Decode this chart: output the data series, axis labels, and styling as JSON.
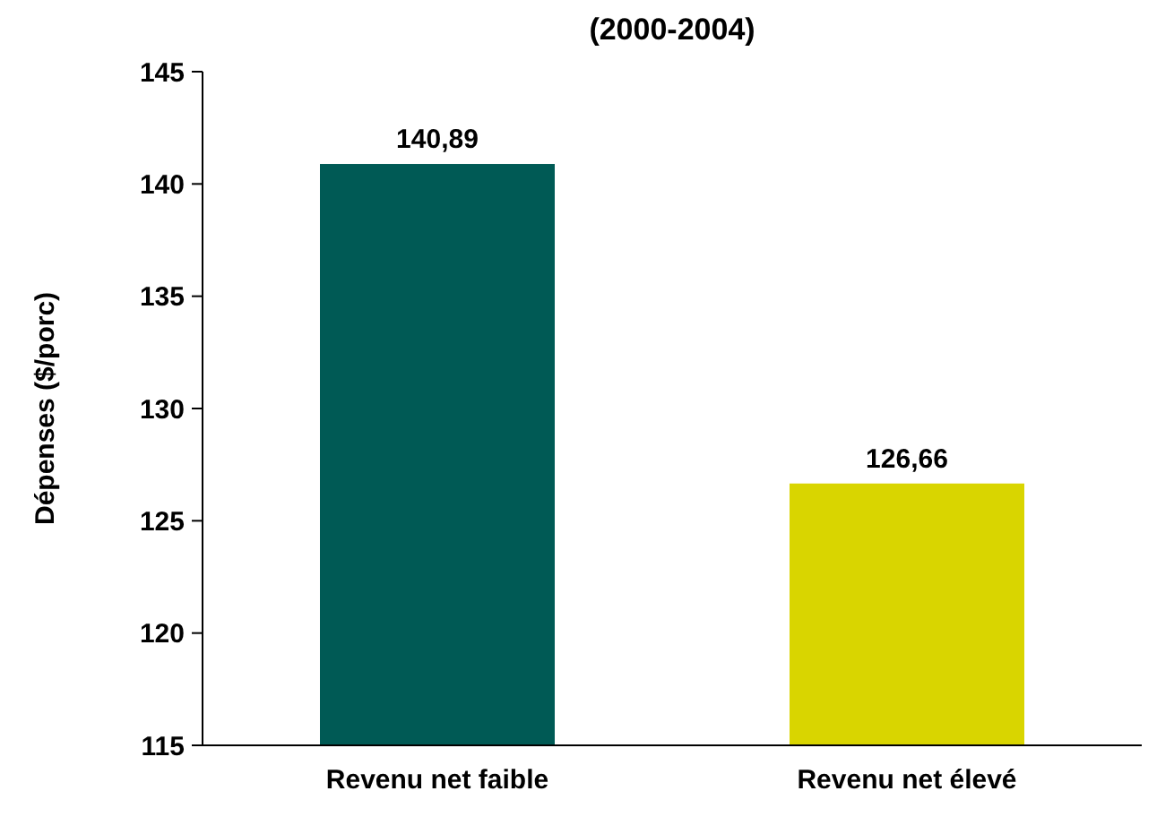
{
  "chart_data": {
    "type": "bar",
    "title": "(2000-2004)",
    "ylabel": "Dépenses ($/porc)",
    "categories": [
      "Revenu net faible",
      "Revenu net élevé"
    ],
    "values": [
      140.89,
      126.66
    ],
    "colors": [
      "#005a55",
      "#d9d500"
    ],
    "value_labels": [
      "140,89",
      "126,66"
    ],
    "ylim": [
      115,
      145
    ],
    "yticks": [
      115,
      120,
      125,
      130,
      135,
      140,
      145
    ]
  }
}
